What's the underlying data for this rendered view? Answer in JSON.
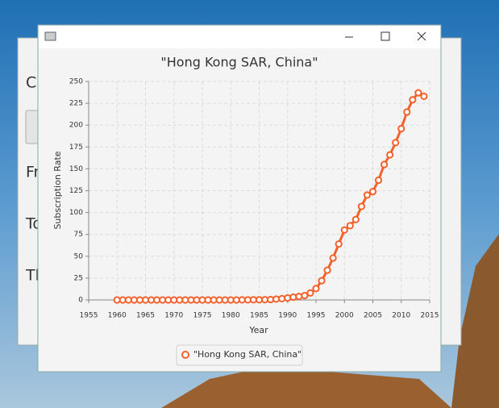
{
  "back_window": {
    "labels": [
      "Ca",
      "Fr",
      "To",
      "Th"
    ]
  },
  "chart_data": {
    "type": "line",
    "title": "\"Hong Kong SAR, China\"",
    "x_label": "Year",
    "y_label": "Subscription Rate",
    "x": [
      1960,
      1961,
      1962,
      1963,
      1964,
      1965,
      1966,
      1967,
      1968,
      1969,
      1970,
      1971,
      1972,
      1973,
      1974,
      1975,
      1976,
      1977,
      1978,
      1979,
      1980,
      1981,
      1982,
      1983,
      1984,
      1985,
      1986,
      1987,
      1988,
      1989,
      1990,
      1991,
      1992,
      1993,
      1994,
      1995,
      1996,
      1997,
      1998,
      1999,
      2000,
      2001,
      2002,
      2003,
      2004,
      2005,
      2006,
      2007,
      2008,
      2009,
      2010,
      2011,
      2012,
      2013,
      2014
    ],
    "series": [
      {
        "name": "\"Hong Kong SAR, China\"",
        "color": "#f3622d",
        "values": [
          0,
          0,
          0,
          0,
          0,
          0,
          0,
          0,
          0,
          0,
          0,
          0,
          0,
          0,
          0,
          0,
          0,
          0,
          0,
          0,
          0,
          0,
          0.1,
          0.1,
          0.2,
          0.2,
          0.3,
          0.5,
          1,
          1.5,
          2.3,
          3.2,
          4,
          5,
          8,
          13,
          22,
          34,
          48,
          64,
          80,
          85,
          92,
          107,
          120,
          124,
          137,
          155,
          166,
          180,
          196,
          215,
          229,
          237,
          233
        ]
      }
    ],
    "xlim": [
      1955,
      2015
    ],
    "xticks": [
      1955,
      1960,
      1965,
      1970,
      1975,
      1980,
      1985,
      1990,
      1995,
      2000,
      2005,
      2010,
      2015
    ],
    "ylim": [
      0,
      250
    ],
    "yticks": [
      0,
      25,
      50,
      75,
      100,
      125,
      150,
      175,
      200,
      225,
      250
    ],
    "grid": true,
    "legend": "bottom"
  }
}
